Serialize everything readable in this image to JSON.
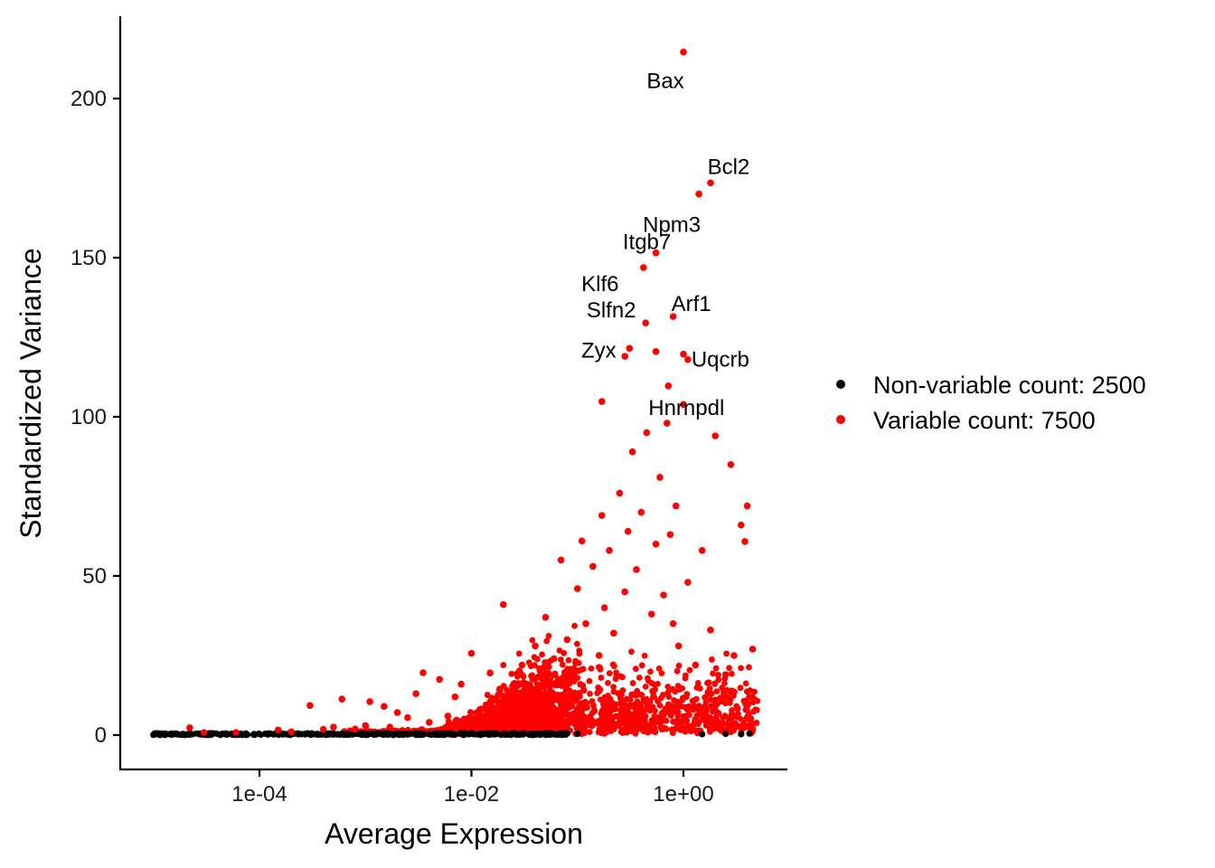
{
  "chart_data": {
    "type": "scatter",
    "title": "",
    "xlabel": "Average Expression",
    "ylabel": "Standardized Variance",
    "x_scale": "log10",
    "xlim": [
      5.6e-06,
      7.0
    ],
    "ylim": [
      -10,
      225
    ],
    "x_ticks": [
      {
        "value": 0.0001,
        "label": "1e-04"
      },
      {
        "value": 0.01,
        "label": "1e-02"
      },
      {
        "value": 1,
        "label": "1e+00"
      }
    ],
    "y_ticks": [
      {
        "value": 0,
        "label": "0"
      },
      {
        "value": 50,
        "label": "50"
      },
      {
        "value": 100,
        "label": "100"
      },
      {
        "value": 150,
        "label": "150"
      },
      {
        "value": 200,
        "label": "200"
      }
    ],
    "grid": false,
    "legend_position": "right",
    "series": [
      {
        "name": "Non-variable count: 2500",
        "color": "#000000",
        "count": 2500,
        "points": [
          [
            1e-05,
            0.1
          ],
          [
            1.8e-05,
            0.1
          ],
          [
            3.5e-05,
            0.1
          ],
          [
            5e-05,
            0.2
          ],
          [
            7e-05,
            0.2
          ],
          [
            0.0001,
            0.3
          ],
          [
            0.00012,
            0.2
          ],
          [
            0.00015,
            0.3
          ],
          [
            0.0002,
            0.4
          ],
          [
            0.00025,
            0.3
          ],
          [
            0.0003,
            0.2
          ],
          [
            0.0004,
            0.4
          ],
          [
            0.0005,
            0.5
          ],
          [
            0.0007,
            0.3
          ],
          [
            0.001,
            0.4
          ],
          [
            0.0013,
            0.6
          ],
          [
            0.0016,
            0.3
          ],
          [
            0.002,
            0.5
          ],
          [
            0.0025,
            0.4
          ],
          [
            0.003,
            0.6
          ],
          [
            0.004,
            0.3
          ],
          [
            0.005,
            0.5
          ],
          [
            0.006,
            0.4
          ],
          [
            0.008,
            0.6
          ],
          [
            0.01,
            0.5
          ],
          [
            0.013,
            0.3
          ],
          [
            0.016,
            0.6
          ],
          [
            0.02,
            0.4
          ],
          [
            0.025,
            0.5
          ],
          [
            0.03,
            0.3
          ],
          [
            0.04,
            0.4
          ],
          [
            0.05,
            0.6
          ],
          [
            0.06,
            0.3
          ],
          [
            0.08,
            0.5
          ],
          [
            0.1,
            0.4
          ],
          [
            1.5,
            0.3
          ],
          [
            2.5,
            0.4
          ],
          [
            3.5,
            0.3
          ],
          [
            4.2,
            0.5
          ]
        ]
      },
      {
        "name": "Variable count: 7500",
        "color": "#ff0000",
        "count": 7500,
        "points": [
          [
            2.2e-05,
            2.3
          ],
          [
            3e-05,
            0.8
          ],
          [
            6e-05,
            0.8
          ],
          [
            0.00015,
            1.6
          ],
          [
            0.0002,
            1.0
          ],
          [
            0.0003,
            9.3
          ],
          [
            0.0004,
            1.8
          ],
          [
            0.0005,
            2.5
          ],
          [
            0.0006,
            11.3
          ],
          [
            0.0008,
            1.9
          ],
          [
            0.001,
            3.0
          ],
          [
            0.0011,
            10.5
          ],
          [
            0.0015,
            9.0
          ],
          [
            0.0017,
            2.5
          ],
          [
            0.002,
            7.1
          ],
          [
            0.0025,
            5.5
          ],
          [
            0.003,
            13.0
          ],
          [
            0.0035,
            19.6
          ],
          [
            0.004,
            4.0
          ],
          [
            0.005,
            17.5
          ],
          [
            0.006,
            6.0
          ],
          [
            0.007,
            12.0
          ],
          [
            0.008,
            16.0
          ],
          [
            0.01,
            25.7
          ],
          [
            0.012,
            8.0
          ],
          [
            0.015,
            19.5
          ],
          [
            0.02,
            41.0
          ],
          [
            0.025,
            16.0
          ],
          [
            0.03,
            22.0
          ],
          [
            0.035,
            14.0
          ],
          [
            0.04,
            28.0
          ],
          [
            0.05,
            37.0
          ],
          [
            0.06,
            24.0
          ],
          [
            0.07,
            55.0
          ],
          [
            0.08,
            30.0
          ],
          [
            0.09,
            18.0
          ],
          [
            0.1,
            46.0
          ],
          [
            0.11,
            61.0
          ],
          [
            0.12,
            35.0
          ],
          [
            0.14,
            53.0
          ],
          [
            0.16,
            25.0
          ],
          [
            0.17,
            69.0
          ],
          [
            0.18,
            40.0
          ],
          [
            0.2,
            58.0
          ],
          [
            0.22,
            32.0
          ],
          [
            0.25,
            76.0
          ],
          [
            0.28,
            45.0
          ],
          [
            0.3,
            64.0
          ],
          [
            0.33,
            89.0
          ],
          [
            0.36,
            52.0
          ],
          [
            0.4,
            70.0
          ],
          [
            0.45,
            95.0
          ],
          [
            0.5,
            38.0
          ],
          [
            0.55,
            60.0
          ],
          [
            0.6,
            81.0
          ],
          [
            0.65,
            44.0
          ],
          [
            0.7,
            98.0
          ],
          [
            0.75,
            63.0
          ],
          [
            0.8,
            35.0
          ],
          [
            0.85,
            72.0
          ],
          [
            0.9,
            28.0
          ],
          [
            1.1,
            48.0
          ],
          [
            1.3,
            22.0
          ],
          [
            1.5,
            58.0
          ],
          [
            1.8,
            33.0
          ],
          [
            2.0,
            94.0
          ],
          [
            2.5,
            19.0
          ],
          [
            2.8,
            85.0
          ],
          [
            3.0,
            25.0
          ],
          [
            3.5,
            66.0
          ],
          [
            4.0,
            72.0
          ],
          [
            4.2,
            12.0
          ],
          [
            4.5,
            27.0
          ],
          [
            3.8,
            60.8
          ],
          [
            0.17,
            104.8
          ],
          [
            0.28,
            119.0
          ],
          [
            0.31,
            121.5
          ],
          [
            0.55,
            120.5
          ],
          [
            0.72,
            109.7
          ],
          [
            1.0,
            103.9
          ],
          [
            1.0,
            119.7
          ],
          [
            1.1,
            118.0
          ],
          [
            0.44,
            129.5
          ],
          [
            0.8,
            131.5
          ],
          [
            0.42,
            146.9
          ],
          [
            0.55,
            151.5
          ],
          [
            1.4,
            170.0
          ],
          [
            1.8,
            173.5
          ],
          [
            1.0,
            214.6
          ]
        ],
        "labeled_genes": [
          {
            "gene": "Bax",
            "x": 1.0,
            "y": 214.6
          },
          {
            "gene": "Bcl2",
            "x": 1.8,
            "y": 173.5
          },
          {
            "gene": "Npm3",
            "x": 1.4,
            "y": 170.0
          },
          {
            "gene": "Itgb7",
            "x": 0.55,
            "y": 151.5
          },
          {
            "gene": "Klf6",
            "x": 0.42,
            "y": 146.9
          },
          {
            "gene": "Arf1",
            "x": 0.8,
            "y": 131.5
          },
          {
            "gene": "Slfn2",
            "x": 0.44,
            "y": 129.5
          },
          {
            "gene": "Zyx",
            "x": 0.31,
            "y": 121.5
          },
          {
            "gene": "Uqcrb",
            "x": 1.1,
            "y": 118.0
          },
          {
            "gene": "Hnrnpdl",
            "x": 0.72,
            "y": 109.7
          }
        ]
      }
    ]
  }
}
